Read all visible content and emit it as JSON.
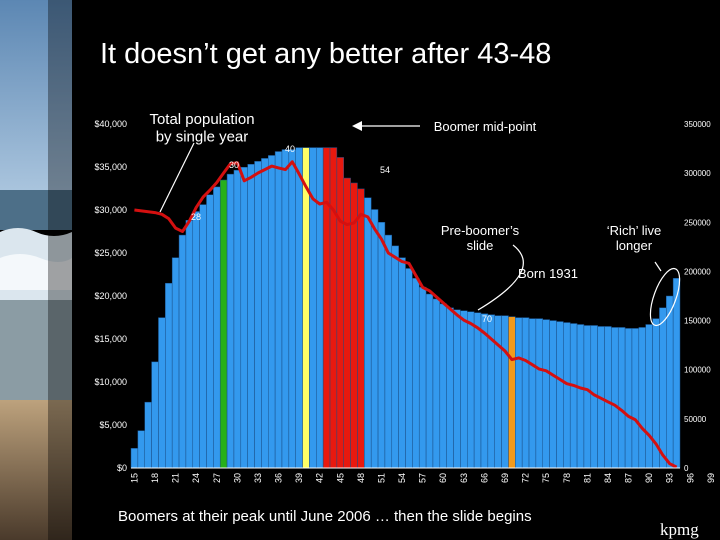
{
  "slide": {
    "title": "It doesn’t get any better after 43-48",
    "footer": "Boomers at their peak until June 2006 … then the slide begins",
    "logo": "kpmg"
  },
  "colors": {
    "background": "#000000",
    "bar": "#3399ee",
    "bar_edge": "#1a4f88",
    "boomer_bar": "#e8190f",
    "age28_bar": "#27b01a",
    "age40_bar": "#ffff66",
    "age70_bar": "#f29a1c",
    "wealth_line": "#d41010",
    "text": "#ffffff"
  },
  "chart_data": {
    "type": "bar",
    "title": "Total population by single year",
    "x_start": 15,
    "x_tick_labels": [
      "15",
      "18",
      "21",
      "24",
      "27",
      "30",
      "33",
      "36",
      "39",
      "42",
      "45",
      "48",
      "51",
      "54",
      "57",
      "60",
      "63",
      "66",
      "69",
      "72",
      "75",
      "78",
      "81",
      "84",
      "87",
      "90",
      "93",
      "96",
      "99"
    ],
    "y_left_tick_labels": [
      "$0",
      "$5,000",
      "$10,000",
      "$15,000",
      "$20,000",
      "$25,000",
      "$30,000",
      "$35,000",
      "$40,000"
    ],
    "y_right_tick_labels": [
      "0",
      "50000",
      "100000",
      "150000",
      "200000",
      "250000",
      "300000",
      "350000"
    ],
    "y_left_lim": [
      0,
      40000
    ],
    "y_right_lim": [
      0,
      350000
    ],
    "series": [
      {
        "axis": "right",
        "kind": "bar",
        "values": [
          20000,
          38000,
          67000,
          108000,
          153000,
          188000,
          214000,
          237000,
          252000,
          261000,
          268000,
          278000,
          286000,
          293000,
          299000,
          303000,
          306000,
          309000,
          312000,
          315000,
          318000,
          322000,
          324000,
          324000,
          326000,
          326000,
          326000,
          326000,
          326000,
          326000,
          316000,
          295000,
          290000,
          284000,
          275000,
          263000,
          250000,
          237000,
          226000,
          214000,
          203000,
          193000,
          184000,
          177000,
          172000,
          167000,
          163000,
          161000,
          160000,
          159000,
          158000,
          157000,
          156000,
          155000,
          155000,
          154000,
          153000,
          153000,
          152000,
          152000,
          151000,
          150000,
          149000,
          148000,
          147000,
          146000,
          145000,
          145000,
          144000,
          144000,
          143000,
          143000,
          142000,
          142000,
          143000,
          146000,
          152000,
          163000,
          175000,
          193000
        ]
      },
      {
        "axis": "left",
        "kind": "line",
        "values": [
          30000,
          29900,
          29800,
          29700,
          29500,
          29000,
          27900,
          27500,
          28700,
          30300,
          31500,
          32300,
          33200,
          34300,
          35400,
          35500,
          33400,
          33800,
          34300,
          34700,
          35100,
          34900,
          34700,
          35600,
          34200,
          32700,
          31300,
          30700,
          30900,
          30000,
          28700,
          28300,
          28500,
          29500,
          29200,
          27800,
          26600,
          25000,
          24500,
          24000,
          23800,
          22400,
          21000,
          20600,
          19900,
          19200,
          18500,
          17800,
          17200,
          16800,
          16300,
          15700,
          15000,
          14300,
          13600,
          12600,
          12800,
          12500,
          12000,
          11500,
          11300,
          10800,
          10300,
          9800,
          9600,
          9300,
          9100,
          8500,
          8100,
          7700,
          7300,
          6700,
          6000,
          5600,
          4600,
          3800,
          2800,
          1500,
          500,
          100
        ]
      }
    ],
    "highlighted_ages": [
      28,
      40,
      70
    ],
    "boomer_ages": [
      43,
      44,
      45,
      46,
      47,
      48
    ],
    "annotations": {
      "total_population": "Total population\nby single year",
      "boomer_midpoint": "Boomer mid-point",
      "pre_boomer": "Pre-boomer’s\nslide",
      "rich": "‘Rich’ live\nlonger",
      "born_1931": "Born 1931",
      "label_30": "30",
      "label_40": "40",
      "label_54": "54",
      "label_28": "28",
      "label_70": "70"
    }
  }
}
